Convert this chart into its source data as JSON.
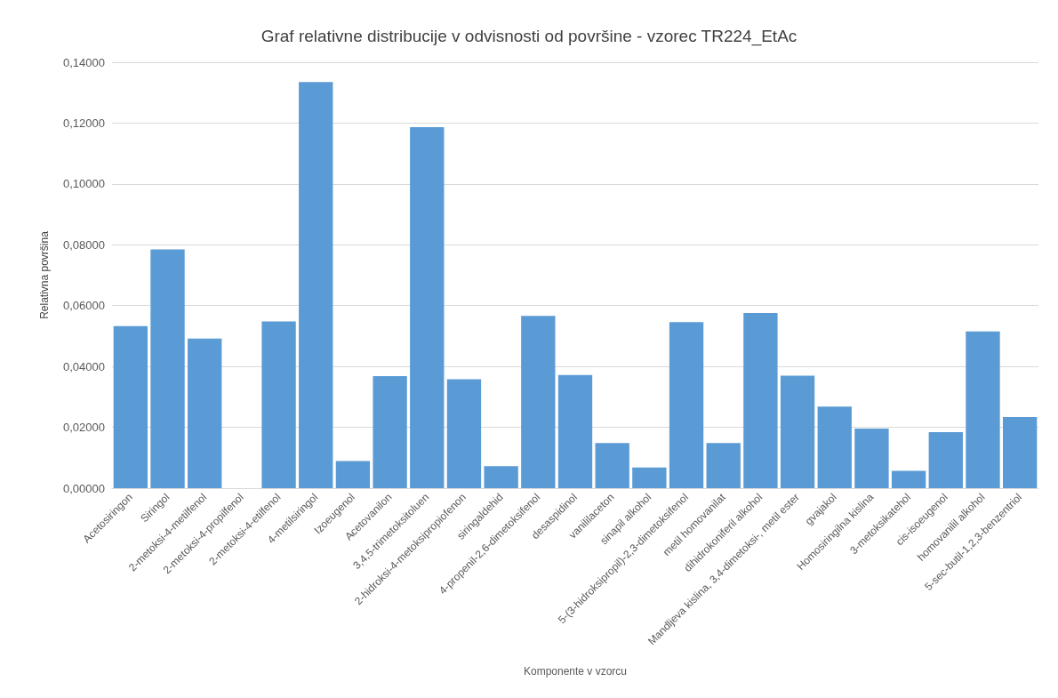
{
  "chart_data": {
    "type": "bar",
    "title": "Graf relativne distribucije v odvisnosti od površine - vzorec TR224_EtAc",
    "xlabel": "Komponente v vzorcu",
    "ylabel": "Relativna površina",
    "categories": [
      "Acetosiringon",
      "Siringol",
      "2-metoksi-4-metilfenol",
      "2-metoksi-4-propilfenol",
      "2-metoksi-4-etilfenol",
      "4-metilsiringol",
      "Izoeugenol",
      "Acetovanilon",
      "3,4,5-trimetoksitoluen",
      "2-hidroksi-4-metoksipropiofenon",
      "siringaldehid",
      "4-propenil-2,6-dimetoksifenol",
      "desaspidinol",
      "vanililaceton",
      "sinapil alkohol",
      "5-(3-hidroksipropil)-2,3-dimetoksifenol",
      "metil homovanilat",
      "dihidrokoniferil alkohol",
      "Mandljeva kislina, 3,4-dimetoksi-, metil ester",
      "gvajakol",
      "Homosiringilna kislina",
      "3-metoksikatehol",
      "cis-isoeugenol",
      "homovanilil alkohol",
      "5-sec-butil-1,2,3-benzentriol"
    ],
    "values": [
      0.0533,
      0.0785,
      0.0492,
      0,
      0.0548,
      0.1335,
      0.0089,
      0.0368,
      0.1187,
      0.0358,
      0.0072,
      0.0566,
      0.0372,
      0.0148,
      0.0068,
      0.0546,
      0.0148,
      0.0576,
      0.037,
      0.0268,
      0.0196,
      0.0057,
      0.0184,
      0.0515,
      0.0234
    ],
    "color": "#5b9bd5",
    "ylim": [
      0,
      0.14
    ],
    "yticks": [
      {
        "value": 0,
        "label": "0,00000"
      },
      {
        "value": 0.02,
        "label": "0,02000"
      },
      {
        "value": 0.04,
        "label": "0,04000"
      },
      {
        "value": 0.06,
        "label": "0,06000"
      },
      {
        "value": 0.08,
        "label": "0,08000"
      },
      {
        "value": 0.1,
        "label": "0,10000"
      },
      {
        "value": 0.12,
        "label": "0,12000"
      },
      {
        "value": 0.14,
        "label": "0,14000"
      }
    ],
    "grid": "y"
  }
}
